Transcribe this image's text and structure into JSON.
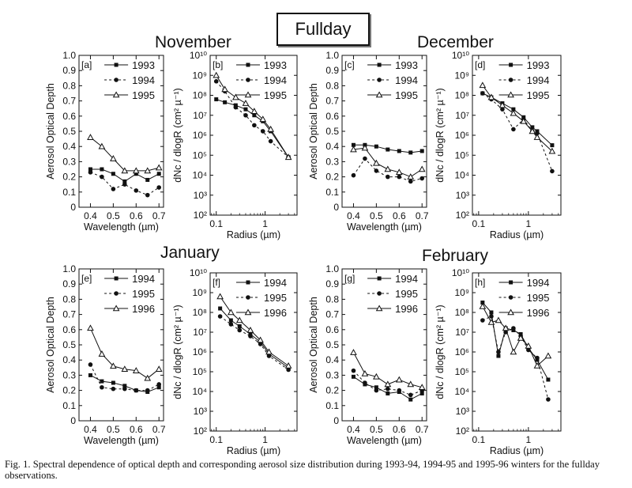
{
  "header": {
    "fullday": "Fullday",
    "months": {
      "november": "November",
      "december": "December",
      "january": "January",
      "february": "February"
    }
  },
  "caption": "Fig. 1. Spectral dependence of optical depth and corresponding aerosol size distribution during 1993-94, 1994-95 and 1995-96 winters for the fullday observations.",
  "chart_data": [
    {
      "id": "a",
      "type": "line",
      "panel_label": "[a]",
      "xlabel": "Wavelength (µm)",
      "ylabel": "Aerosol Optical Depth",
      "xlim": [
        0.35,
        0.72
      ],
      "ylim": [
        0,
        1.0
      ],
      "xticks": [
        "0.4",
        "0.5",
        "0.6",
        "0.7"
      ],
      "yticks": [
        "0",
        "0.1",
        "0.2",
        "0.3",
        "0.4",
        "0.5",
        "0.6",
        "0.7",
        "0.8",
        "0.9",
        "1.0"
      ],
      "x": [
        0.4,
        0.45,
        0.5,
        0.55,
        0.6,
        0.65,
        0.7
      ],
      "series": [
        {
          "name": "1993",
          "marker": "square",
          "dash": "",
          "values": [
            0.25,
            0.25,
            0.22,
            0.17,
            0.22,
            0.18,
            0.22
          ]
        },
        {
          "name": "1994",
          "marker": "circle",
          "dash": "3,3",
          "values": [
            0.23,
            0.2,
            0.12,
            0.15,
            0.11,
            0.08,
            0.13
          ]
        },
        {
          "name": "1995",
          "marker": "triangle",
          "dash": "",
          "values": [
            0.46,
            0.4,
            0.32,
            0.24,
            0.24,
            0.24,
            0.26
          ]
        }
      ]
    },
    {
      "id": "b",
      "type": "line",
      "panel_label": "[b]",
      "xlabel": "Radius (µm)",
      "ylabel": "dNc / dlogR (cm² µ⁻¹)",
      "xscale": "log",
      "yscale": "log",
      "xlim": [
        0.075,
        4.5
      ],
      "ylim": [
        2,
        10
      ],
      "xticks": [
        "0.1",
        "1"
      ],
      "yticks": [
        "10²",
        "10³",
        "10⁴",
        "10⁵",
        "10⁶",
        "10⁷",
        "10⁸",
        "10⁹",
        "10¹⁰"
      ],
      "x": [
        0.1,
        0.15,
        0.25,
        0.4,
        0.6,
        0.9,
        1.3,
        3.0
      ],
      "series": [
        {
          "name": "1993",
          "marker": "square",
          "dash": "",
          "values": [
            7.8,
            7.65,
            7.5,
            7.3,
            7.0,
            6.7,
            6.2,
            4.9
          ]
        },
        {
          "name": "1994",
          "marker": "circle",
          "dash": "3,3",
          "values": [
            8.7,
            8.2,
            7.4,
            7.0,
            6.5,
            6.2,
            5.7,
            4.9
          ]
        },
        {
          "name": "1995",
          "marker": "triangle",
          "dash": "",
          "values": [
            9.0,
            8.3,
            7.9,
            7.6,
            7.2,
            6.8,
            6.3,
            4.9
          ]
        }
      ]
    },
    {
      "id": "c",
      "type": "line",
      "panel_label": "[c]",
      "xlabel": "Wavelength (µm)",
      "ylabel": "Aerosol Optical Depth",
      "xlim": [
        0.35,
        0.72
      ],
      "ylim": [
        0,
        1.0
      ],
      "xticks": [
        "0.4",
        "0.5",
        "0.6",
        "0.7"
      ],
      "yticks": [
        "0",
        "0.1",
        "0.2",
        "0.3",
        "0.4",
        "0.5",
        "0.6",
        "0.7",
        "0.8",
        "0.9",
        "1.0"
      ],
      "x": [
        0.4,
        0.45,
        0.5,
        0.55,
        0.6,
        0.65,
        0.7
      ],
      "series": [
        {
          "name": "1993",
          "marker": "square",
          "dash": "",
          "values": [
            0.41,
            0.41,
            0.4,
            0.38,
            0.37,
            0.36,
            0.37
          ]
        },
        {
          "name": "1994",
          "marker": "circle",
          "dash": "3,3",
          "values": [
            0.21,
            0.32,
            0.24,
            0.2,
            0.2,
            0.17,
            0.19
          ]
        },
        {
          "name": "1995",
          "marker": "triangle",
          "dash": "",
          "values": [
            0.38,
            0.39,
            0.29,
            0.25,
            0.23,
            0.2,
            0.25
          ]
        }
      ]
    },
    {
      "id": "d",
      "type": "line",
      "panel_label": "[d]",
      "xlabel": "Radius (µm)",
      "ylabel": "dNc / dlogR (cm² µ⁻¹)",
      "xscale": "log",
      "yscale": "log",
      "xlim": [
        0.075,
        4.5
      ],
      "ylim": [
        2,
        10
      ],
      "xticks": [
        "0.1",
        "1"
      ],
      "yticks": [
        "10²",
        "10³",
        "10⁴",
        "10⁵",
        "10⁶",
        "10⁷",
        "10⁸",
        "10⁹",
        "10¹⁰"
      ],
      "x": [
        0.12,
        0.18,
        0.3,
        0.5,
        0.8,
        1.2,
        1.5,
        3.0
      ],
      "series": [
        {
          "name": "1993",
          "marker": "square",
          "dash": "",
          "values": [
            8.1,
            7.9,
            7.6,
            7.3,
            6.9,
            6.4,
            6.2,
            5.5
          ]
        },
        {
          "name": "1994",
          "marker": "circle",
          "dash": "3,3",
          "values": [
            8.1,
            7.8,
            7.3,
            6.3,
            6.8,
            6.2,
            6.1,
            4.2
          ]
        },
        {
          "name": "1995",
          "marker": "triangle",
          "dash": "",
          "values": [
            8.5,
            7.9,
            7.5,
            7.1,
            6.7,
            6.2,
            5.9,
            5.2
          ]
        }
      ]
    },
    {
      "id": "e",
      "type": "line",
      "panel_label": "[e]",
      "xlabel": "Wavelength (µm)",
      "ylabel": "Aerosol Optical Depth",
      "xlim": [
        0.35,
        0.72
      ],
      "ylim": [
        0,
        1.0
      ],
      "xticks": [
        "0.4",
        "0.5",
        "0.6",
        "0.7"
      ],
      "yticks": [
        "0",
        "0.1",
        "0.2",
        "0.3",
        "0.4",
        "0.5",
        "0.6",
        "0.7",
        "0.8",
        "0.9",
        "1.0"
      ],
      "x": [
        0.4,
        0.45,
        0.5,
        0.55,
        0.6,
        0.65,
        0.7
      ],
      "series": [
        {
          "name": "1994",
          "marker": "square",
          "dash": "",
          "values": [
            0.3,
            0.26,
            0.25,
            0.23,
            0.2,
            0.19,
            0.22
          ]
        },
        {
          "name": "1995",
          "marker": "circle",
          "dash": "3,3",
          "values": [
            0.37,
            0.22,
            0.21,
            0.21,
            0.2,
            0.2,
            0.24
          ]
        },
        {
          "name": "1996",
          "marker": "triangle",
          "dash": "",
          "values": [
            0.61,
            0.44,
            0.36,
            0.34,
            0.33,
            0.28,
            0.34
          ]
        }
      ]
    },
    {
      "id": "f",
      "type": "line",
      "panel_label": "[f]",
      "xlabel": "Radius (µm)",
      "ylabel": "dNc / dlogR (cm² µ⁻¹)",
      "xscale": "log",
      "yscale": "log",
      "xlim": [
        0.075,
        4.5
      ],
      "ylim": [
        2,
        10
      ],
      "xticks": [
        "0.1",
        "1"
      ],
      "yticks": [
        "10²",
        "10³",
        "10⁴",
        "10⁵",
        "10⁶",
        "10⁷",
        "10⁸",
        "10⁹",
        "10¹⁰"
      ],
      "x": [
        0.12,
        0.2,
        0.3,
        0.5,
        0.8,
        1.2,
        3.0
      ],
      "series": [
        {
          "name": "1994",
          "marker": "square",
          "dash": "",
          "values": [
            8.2,
            7.6,
            7.3,
            6.9,
            6.5,
            5.9,
            5.2
          ]
        },
        {
          "name": "1995",
          "marker": "circle",
          "dash": "3,3",
          "values": [
            7.8,
            7.4,
            7.1,
            6.8,
            6.4,
            5.8,
            5.1
          ]
        },
        {
          "name": "1996",
          "marker": "triangle",
          "dash": "",
          "values": [
            8.8,
            8.0,
            7.6,
            7.1,
            6.6,
            6.0,
            5.3
          ]
        }
      ]
    },
    {
      "id": "g",
      "type": "line",
      "panel_label": "[g]",
      "xlabel": "Wavelength (µm)",
      "ylabel": "Aerosol Optical Depth",
      "xlim": [
        0.35,
        0.72
      ],
      "ylim": [
        0,
        1.0
      ],
      "xticks": [
        "0.4",
        "0.5",
        "0.6",
        "0.7"
      ],
      "yticks": [
        "0",
        "0.1",
        "0.2",
        "0.3",
        "0.4",
        "0.5",
        "0.6",
        "0.7",
        "0.8",
        "0.9",
        "1.0"
      ],
      "x": [
        0.4,
        0.45,
        0.5,
        0.55,
        0.6,
        0.65,
        0.7
      ],
      "series": [
        {
          "name": "1994",
          "marker": "square",
          "dash": "",
          "values": [
            0.29,
            0.24,
            0.22,
            0.18,
            0.19,
            0.14,
            0.18
          ]
        },
        {
          "name": "1995",
          "marker": "circle",
          "dash": "3,3",
          "values": [
            0.33,
            0.25,
            0.2,
            0.21,
            0.2,
            0.17,
            0.2
          ]
        },
        {
          "name": "1996",
          "marker": "triangle",
          "dash": "",
          "values": [
            0.45,
            0.31,
            0.29,
            0.24,
            0.27,
            0.24,
            0.22
          ]
        }
      ]
    },
    {
      "id": "h",
      "type": "line",
      "panel_label": "[h]",
      "xlabel": "Radius (µm)",
      "ylabel": "dNc / dlogR (cm² µ⁻¹)",
      "xscale": "log",
      "yscale": "log",
      "xlim": [
        0.075,
        4.5
      ],
      "ylim": [
        2,
        10
      ],
      "xticks": [
        "0.1",
        "1"
      ],
      "yticks": [
        "10²",
        "10³",
        "10⁴",
        "10⁵",
        "10⁶",
        "10⁷",
        "10⁸",
        "10⁹",
        "10¹⁰"
      ],
      "x": [
        0.12,
        0.18,
        0.25,
        0.35,
        0.5,
        0.7,
        1.0,
        1.5,
        2.5
      ],
      "series": [
        {
          "name": "1994",
          "marker": "square",
          "dash": "",
          "values": [
            8.5,
            8.0,
            5.8,
            7.2,
            7.1,
            6.9,
            6.2,
            5.6,
            4.6
          ]
        },
        {
          "name": "1995",
          "marker": "circle",
          "dash": "3,3",
          "values": [
            7.6,
            7.8,
            6.0,
            7.0,
            7.2,
            6.8,
            6.1,
            5.7,
            3.6
          ]
        },
        {
          "name": "1996",
          "marker": "triangle",
          "dash": "",
          "values": [
            8.3,
            7.5,
            7.6,
            7.2,
            6.0,
            6.7,
            6.3,
            5.3,
            5.8
          ]
        }
      ]
    }
  ]
}
